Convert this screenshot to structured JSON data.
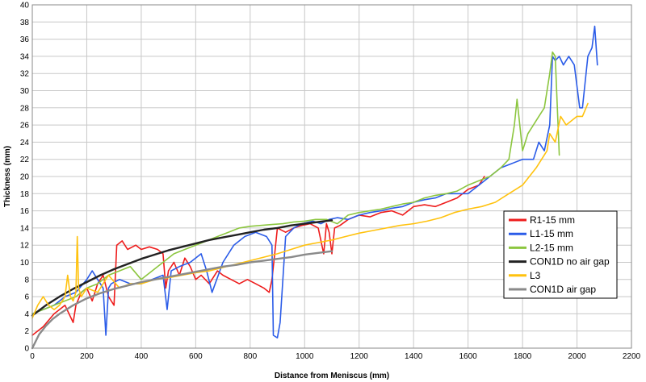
{
  "chart_data": {
    "type": "line",
    "title": "",
    "xlabel": "Distance from Meniscus (mm)",
    "ylabel": "Thickness (mm)",
    "xlim": [
      0,
      2200
    ],
    "ylim": [
      0,
      40
    ],
    "xticks": [
      0,
      200,
      400,
      600,
      800,
      1000,
      1200,
      1400,
      1600,
      1800,
      2000,
      2200
    ],
    "yticks": [
      0,
      2,
      4,
      6,
      8,
      10,
      12,
      14,
      16,
      18,
      20,
      22,
      24,
      26,
      28,
      30,
      32,
      34,
      36,
      38,
      40
    ],
    "grid": true,
    "legend_position": "right",
    "series": [
      {
        "name": "R1-15 mm",
        "color": "#ee1c1c",
        "x": [
          0,
          40,
          80,
          120,
          150,
          160,
          180,
          200,
          220,
          240,
          260,
          280,
          300,
          310,
          330,
          350,
          380,
          400,
          430,
          460,
          480,
          490,
          500,
          520,
          540,
          560,
          580,
          600,
          620,
          650,
          680,
          700,
          730,
          760,
          790,
          820,
          850,
          870,
          880,
          890,
          900,
          930,
          960,
          990,
          1020,
          1050,
          1060,
          1070,
          1080,
          1090,
          1100,
          1110,
          1130,
          1160,
          1200,
          1240,
          1280,
          1320,
          1360,
          1400,
          1440,
          1480,
          1520,
          1560,
          1600,
          1640,
          1660
        ],
        "y": [
          1.5,
          2.5,
          4,
          5,
          3,
          5,
          6.5,
          7,
          5.5,
          7.5,
          8.5,
          6,
          5,
          12,
          12.5,
          11.5,
          12,
          11.5,
          11.8,
          11.5,
          11,
          7,
          9,
          10,
          8.5,
          10.5,
          9.5,
          8,
          8.5,
          7.5,
          9,
          8.5,
          8,
          7.5,
          8,
          7.5,
          7,
          6.5,
          8,
          11,
          14,
          13.5,
          14,
          14.3,
          14.5,
          14,
          12.5,
          11,
          14.5,
          13.5,
          11,
          14,
          14.3,
          15,
          15.5,
          15.3,
          15.8,
          16,
          15.5,
          16.5,
          16.7,
          16.5,
          17,
          17.5,
          18.5,
          19,
          20
        ]
      },
      {
        "name": "L1-15 mm",
        "color": "#2b5ce8",
        "x": [
          0,
          40,
          80,
          120,
          160,
          200,
          220,
          240,
          260,
          270,
          280,
          290,
          320,
          360,
          400,
          440,
          480,
          495,
          510,
          540,
          580,
          620,
          640,
          660,
          700,
          740,
          780,
          820,
          860,
          880,
          885,
          900,
          910,
          930,
          960,
          990,
          1030,
          1060,
          1090,
          1120,
          1160,
          1200,
          1240,
          1280,
          1320,
          1360,
          1400,
          1440,
          1480,
          1520,
          1560,
          1600,
          1640,
          1680,
          1720,
          1760,
          1800,
          1840,
          1860,
          1880,
          1900,
          1910,
          1920,
          1935,
          1950,
          1970,
          1990,
          2010,
          2020,
          2040,
          2055,
          2065,
          2075
        ],
        "y": [
          4,
          4.5,
          5,
          6,
          6.5,
          8,
          9,
          8,
          7,
          1.5,
          7,
          7.5,
          8,
          7.5,
          7.5,
          8,
          8.5,
          4.5,
          9,
          9.5,
          10,
          11,
          9,
          6.5,
          10,
          12,
          13,
          13.5,
          13,
          12,
          1.5,
          1.2,
          3,
          13,
          14,
          14.5,
          14.8,
          14.5,
          15,
          15.2,
          15,
          15.5,
          15.8,
          16,
          16.3,
          16.5,
          17,
          17.3,
          17.5,
          18,
          18,
          18,
          19,
          20,
          21,
          21.5,
          22,
          22,
          24,
          23,
          26,
          34,
          33.5,
          34,
          33,
          34,
          33,
          28,
          28,
          34,
          35,
          37.5,
          33
        ]
      },
      {
        "name": "L2-15 mm",
        "color": "#8cc63f",
        "x": [
          0,
          40,
          80,
          120,
          160,
          200,
          240,
          280,
          320,
          360,
          400,
          440,
          480,
          520,
          560,
          600,
          640,
          680,
          720,
          760,
          800,
          840,
          880,
          920,
          960,
          1000,
          1040,
          1080,
          1120,
          1160,
          1200,
          1240,
          1280,
          1320,
          1360,
          1400,
          1440,
          1480,
          1520,
          1560,
          1600,
          1640,
          1680,
          1720,
          1750,
          1770,
          1780,
          1800,
          1820,
          1840,
          1860,
          1880,
          1900,
          1910,
          1920,
          1935
        ],
        "y": [
          4,
          4.5,
          5,
          5.5,
          6,
          7,
          7.5,
          8.5,
          9,
          9.5,
          8,
          9,
          10,
          11,
          11.5,
          12,
          12.5,
          13,
          13.5,
          14,
          14.2,
          14.3,
          14.4,
          14.5,
          14.7,
          14.8,
          15,
          15,
          14.5,
          15.5,
          15.8,
          16,
          16.2,
          16.5,
          16.8,
          17,
          17.5,
          17.8,
          18,
          18.3,
          19,
          19.5,
          20,
          21,
          22,
          26,
          29,
          23,
          25,
          26,
          27,
          28,
          32,
          34.5,
          34,
          22.5
        ]
      },
      {
        "name": "CON1D no air gap",
        "color": "#222222",
        "x": [
          0,
          50,
          100,
          150,
          200,
          250,
          300,
          350,
          400,
          450,
          500,
          550,
          600,
          650,
          700,
          750,
          800,
          850,
          900,
          950,
          1000,
          1050,
          1100
        ],
        "y": [
          3.8,
          5.0,
          6.0,
          6.9,
          7.7,
          8.5,
          9.2,
          9.8,
          10.4,
          10.9,
          11.4,
          11.8,
          12.2,
          12.6,
          12.9,
          13.2,
          13.5,
          13.8,
          14.0,
          14.3,
          14.5,
          14.7,
          14.9
        ]
      },
      {
        "name": "L3",
        "color": "#ffc20e",
        "x": [
          0,
          20,
          40,
          60,
          80,
          100,
          120,
          130,
          140,
          150,
          160,
          165,
          170,
          180,
          200,
          240,
          280,
          320,
          360,
          400,
          450,
          500,
          550,
          600,
          650,
          700,
          750,
          800,
          850,
          900,
          950,
          1000,
          1050,
          1100,
          1150,
          1200,
          1250,
          1300,
          1350,
          1400,
          1450,
          1500,
          1550,
          1600,
          1650,
          1700,
          1750,
          1800,
          1850,
          1890,
          1900,
          1920,
          1940,
          1960,
          1980,
          2000,
          2020,
          2040
        ],
        "y": [
          3.5,
          5,
          6,
          5,
          4.5,
          5,
          6,
          8.5,
          6,
          5.5,
          6.5,
          13,
          7,
          6,
          7,
          6.5,
          8.5,
          7,
          7.5,
          7.5,
          8,
          8.2,
          8.5,
          8.8,
          9,
          9.4,
          9.8,
          10.2,
          10.6,
          11,
          11.5,
          12,
          12.3,
          12.6,
          13,
          13.4,
          13.7,
          14,
          14.3,
          14.5,
          14.8,
          15.2,
          15.8,
          16.2,
          16.5,
          17,
          18,
          19,
          21,
          23,
          25,
          24,
          27,
          26,
          26.5,
          27,
          27,
          28.5
        ]
      },
      {
        "name": "CON1D air gap",
        "color": "#8a8a8a",
        "x": [
          0,
          25,
          50,
          75,
          100,
          150,
          200,
          250,
          300,
          350,
          400,
          450,
          500,
          550,
          600,
          650,
          700,
          750,
          800,
          850,
          900,
          950,
          1000,
          1050,
          1100
        ],
        "y": [
          0,
          1.6,
          2.6,
          3.4,
          4.0,
          5.0,
          5.8,
          6.4,
          6.9,
          7.3,
          7.7,
          8.0,
          8.3,
          8.6,
          8.9,
          9.2,
          9.5,
          9.7,
          10.0,
          10.2,
          10.4,
          10.6,
          10.9,
          11.1,
          11.3
        ]
      }
    ]
  }
}
